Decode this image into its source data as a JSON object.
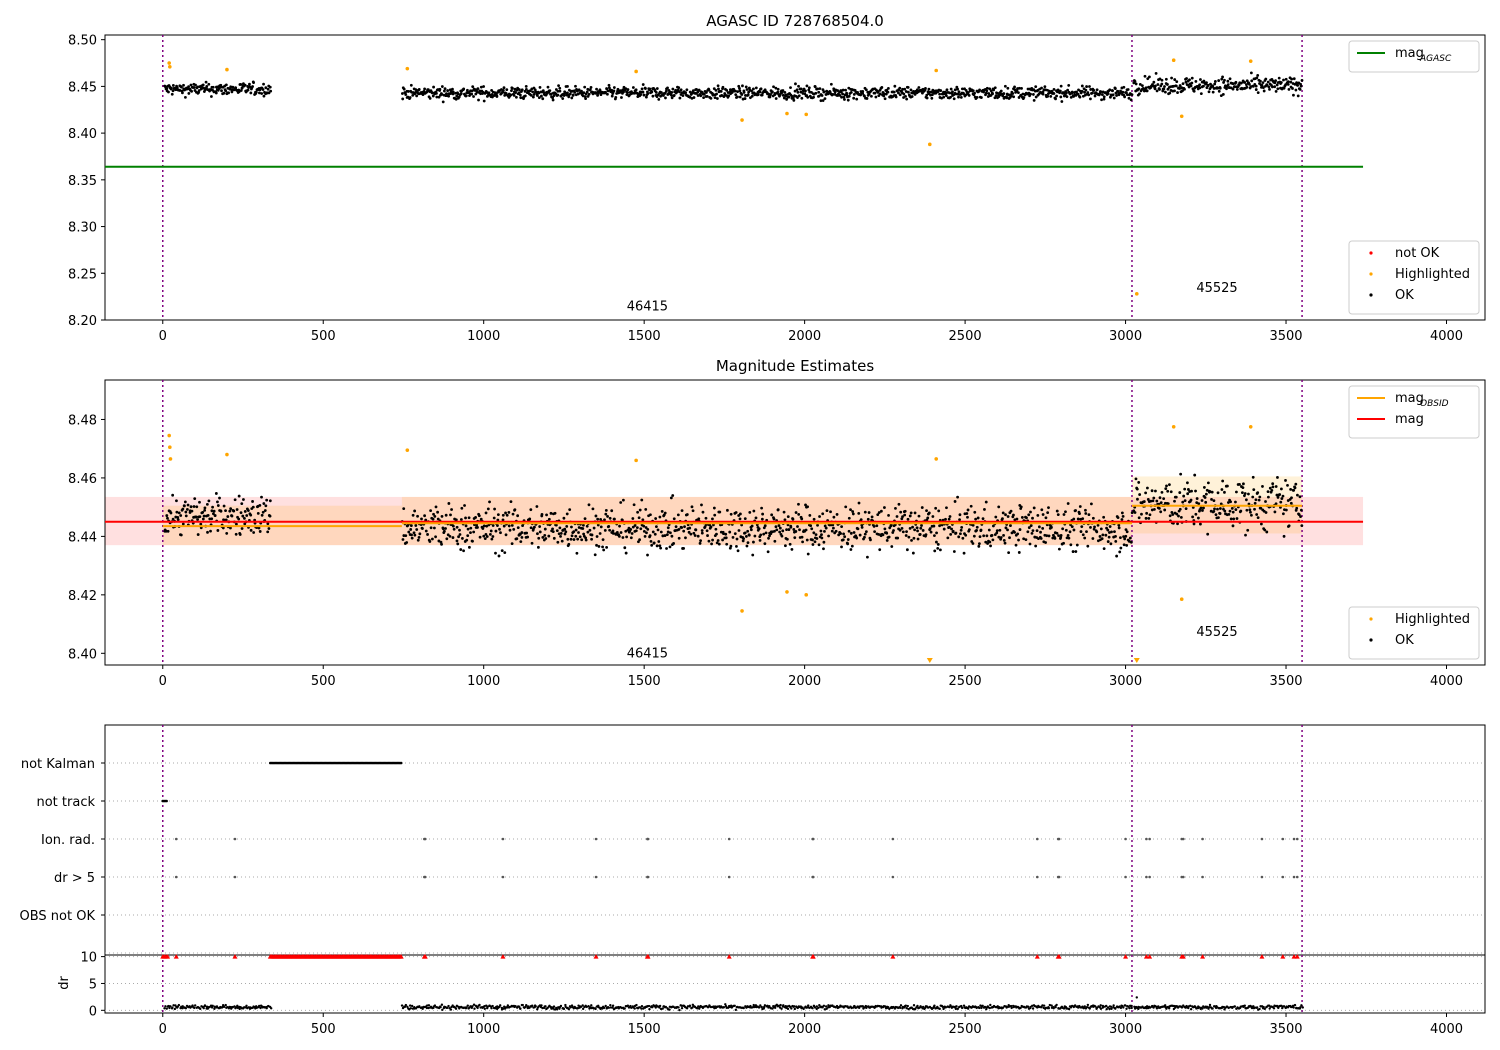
{
  "chart_data": [
    {
      "type": "scatter",
      "title": "AGASC ID 728768504.0",
      "xlim": [
        -180,
        4120
      ],
      "ylim": [
        8.2,
        8.505
      ],
      "x_ticks": [
        0,
        500,
        1000,
        1500,
        2000,
        2500,
        3000,
        3500,
        4000
      ],
      "x_tick_labels": [
        "0",
        "500",
        "1000",
        "1500",
        "2000",
        "2500",
        "3000",
        "3500",
        "4000"
      ],
      "y_ticks": [
        8.2,
        8.25,
        8.3,
        8.35,
        8.4,
        8.45,
        8.5
      ],
      "y_tick_labels": [
        "8.20",
        "8.25",
        "8.30",
        "8.35",
        "8.40",
        "8.45",
        "8.50"
      ],
      "observation_boundaries": [
        0,
        3020,
        3550
      ],
      "annotations": [
        {
          "text": "46415",
          "x": 1510,
          "y": 8.21
        },
        {
          "text": "45525",
          "x": 3285,
          "y": 8.23
        }
      ],
      "lines": [
        {
          "name": "mag_AGASC",
          "y": 8.364,
          "x": [
            -180,
            3740
          ],
          "color": "#008000"
        }
      ],
      "series": [
        {
          "name": "OK",
          "color": "#000000",
          "segments": [
            {
              "x": [
                5,
                335
              ],
              "center": 8.447,
              "spread": 0.006
            },
            {
              "x": [
                745,
                3020
              ],
              "center": 8.443,
              "spread": 0.006
            },
            {
              "x": [
                3025,
                3550
              ],
              "center": 8.451,
              "spread": 0.008
            }
          ]
        },
        {
          "name": "Highlighted",
          "color": "#ffa500",
          "points": [
            [
              20,
              8.475
            ],
            [
              22,
              8.471
            ],
            [
              200,
              8.468
            ],
            [
              762,
              8.469
            ],
            [
              1475,
              8.466
            ],
            [
              1805,
              8.414
            ],
            [
              1945,
              8.421
            ],
            [
              2005,
              8.42
            ],
            [
              2390,
              8.388
            ],
            [
              2410,
              8.467
            ],
            [
              3035,
              8.228
            ],
            [
              3150,
              8.478
            ],
            [
              3175,
              8.418
            ],
            [
              3390,
              8.477
            ]
          ]
        },
        {
          "name": "not OK",
          "color": "#ff0000",
          "points": []
        }
      ],
      "legends": [
        {
          "position": "upper-right",
          "entries": [
            {
              "label": "mag",
              "sub": "AGASC",
              "kind": "line",
              "color": "#008000"
            }
          ]
        },
        {
          "position": "lower-right",
          "entries": [
            {
              "label": "not OK",
              "kind": "dot",
              "color": "#ff0000"
            },
            {
              "label": "Highlighted",
              "kind": "dot",
              "color": "#ffa500"
            },
            {
              "label": "OK",
              "kind": "dot",
              "color": "#000000"
            }
          ]
        }
      ]
    },
    {
      "type": "scatter",
      "title": "Magnitude Estimates",
      "xlim": [
        -180,
        4120
      ],
      "ylim": [
        8.396,
        8.4935
      ],
      "x_ticks": [
        0,
        500,
        1000,
        1500,
        2000,
        2500,
        3000,
        3500,
        4000
      ],
      "x_tick_labels": [
        "0",
        "500",
        "1000",
        "1500",
        "2000",
        "2500",
        "3000",
        "3500",
        "4000"
      ],
      "y_ticks": [
        8.4,
        8.42,
        8.44,
        8.46,
        8.48
      ],
      "y_tick_labels": [
        "8.40",
        "8.42",
        "8.44",
        "8.46",
        "8.48"
      ],
      "observation_boundaries": [
        0,
        3020,
        3550
      ],
      "annotations": [
        {
          "text": "46415",
          "x": 1510,
          "y": 8.3985
        },
        {
          "text": "45525",
          "x": 3285,
          "y": 8.406
        }
      ],
      "bands": [
        {
          "name": "mag",
          "x": [
            -180,
            3740
          ],
          "y": [
            8.437,
            8.4535
          ],
          "color": "#ff0000",
          "opacity": 0.12
        },
        {
          "name": "mag_OBSID",
          "x": [
            0,
            745
          ],
          "y": [
            8.437,
            8.4505
          ],
          "color": "#ffa500",
          "opacity": 0.15
        },
        {
          "name": "mag_OBSID",
          "x": [
            745,
            3020
          ],
          "y": [
            8.437,
            8.4535
          ],
          "color": "#ffa500",
          "opacity": 0.15
        },
        {
          "name": "mag_OBSID",
          "x": [
            3020,
            3550
          ],
          "y": [
            8.441,
            8.4605
          ],
          "color": "#ffa500",
          "opacity": 0.15
        }
      ],
      "lines": [
        {
          "name": "mag",
          "y": 8.445,
          "x": [
            -180,
            3740
          ],
          "color": "#ff0000"
        },
        {
          "name": "mag_OBSID",
          "y": 8.4435,
          "x": [
            0,
            745
          ],
          "color": "#ffa500"
        },
        {
          "name": "mag_OBSID",
          "y": 8.4445,
          "x": [
            745,
            3020
          ],
          "color": "#ffa500"
        },
        {
          "name": "mag_OBSID",
          "y": 8.4505,
          "x": [
            3020,
            3550
          ],
          "color": "#ffa500"
        }
      ],
      "series": [
        {
          "name": "OK",
          "color": "#000000",
          "segments": [
            {
              "x": [
                5,
                335
              ],
              "center": 8.447,
              "spread": 0.006
            },
            {
              "x": [
                745,
                3020
              ],
              "center": 8.443,
              "spread": 0.007
            },
            {
              "x": [
                3025,
                3550
              ],
              "center": 8.451,
              "spread": 0.008
            }
          ]
        },
        {
          "name": "Highlighted",
          "color": "#ffa500",
          "points": [
            [
              20,
              8.4745
            ],
            [
              22,
              8.4705
            ],
            [
              24,
              8.4665
            ],
            [
              200,
              8.468
            ],
            [
              762,
              8.4695
            ],
            [
              1475,
              8.466
            ],
            [
              1805,
              8.4145
            ],
            [
              1945,
              8.421
            ],
            [
              2005,
              8.42
            ],
            [
              2410,
              8.4665
            ],
            [
              3150,
              8.4775
            ],
            [
              3175,
              8.4185
            ],
            [
              3390,
              8.4775
            ]
          ]
        }
      ],
      "out_of_range_markers": [
        {
          "x": 2390,
          "color": "#ffa500"
        },
        {
          "x": 3035,
          "color": "#ffa500"
        }
      ],
      "legends": [
        {
          "position": "upper-right",
          "entries": [
            {
              "label": "mag",
              "sub": "OBSID",
              "kind": "line",
              "color": "#ffa500"
            },
            {
              "label": "mag",
              "sub": "",
              "kind": "line",
              "color": "#ff0000"
            }
          ]
        },
        {
          "position": "lower-right",
          "entries": [
            {
              "label": "Highlighted",
              "kind": "dot",
              "color": "#ffa500"
            },
            {
              "label": "OK",
              "kind": "dot",
              "color": "#000000"
            }
          ]
        }
      ]
    },
    {
      "type": "scatter",
      "title": "",
      "xlim": [
        -180,
        4120
      ],
      "grid": "horizontal dotted",
      "observation_boundaries": [
        0,
        3020,
        3550
      ],
      "categories": [
        "not Kalman",
        "not track",
        "Ion. rad.",
        "dr > 5",
        "OBS not OK"
      ],
      "flag_ranges": [
        {
          "category": "not Kalman",
          "x": [
            335,
            745
          ]
        },
        {
          "category": "not track",
          "x": [
            0,
            15
          ]
        }
      ],
      "flag_points": {
        "Ion. rad.": [
          42,
          225,
          815,
          818,
          1060,
          1350,
          1510,
          1512,
          1765,
          2025,
          2027,
          2275,
          2725,
          2790,
          2793,
          3000,
          3065,
          3075,
          3175,
          3180,
          3240,
          3425,
          3490,
          3525,
          3535
        ],
        "dr > 5": [
          42,
          225,
          815,
          818,
          1060,
          1350,
          1510,
          1512,
          1765,
          2025,
          2027,
          2275,
          2725,
          2790,
          2793,
          3000,
          3065,
          3075,
          3175,
          3180,
          3240,
          3425,
          3490,
          3525,
          3535
        ],
        "OBS not OK": []
      }
    },
    {
      "type": "scatter",
      "title": "",
      "ylabel": "dr",
      "xlim": [
        -180,
        4120
      ],
      "ylim": [
        -0.5,
        10.3
      ],
      "x_ticks": [
        0,
        500,
        1000,
        1500,
        2000,
        2500,
        3000,
        3500,
        4000
      ],
      "x_tick_labels": [
        "0",
        "500",
        "1000",
        "1500",
        "2000",
        "2500",
        "3000",
        "3500",
        "4000"
      ],
      "y_ticks": [
        0,
        5,
        10
      ],
      "y_tick_labels": [
        "0",
        "5",
        "10"
      ],
      "observation_boundaries": [
        0,
        3020,
        3550
      ],
      "series": [
        {
          "name": "dr",
          "color": "#000000",
          "segments": [
            {
              "x": [
                5,
                335
              ],
              "center": 0.6,
              "spread": 0.35
            },
            {
              "x": [
                745,
                3020
              ],
              "center": 0.6,
              "spread": 0.35
            },
            {
              "x": [
                3025,
                3550
              ],
              "center": 0.6,
              "spread": 0.35
            }
          ]
        },
        {
          "name": "dr clipped",
          "color": "#ff0000",
          "points_x": [
            0,
            5,
            10,
            15,
            42,
            225,
            815,
            818,
            1060,
            1350,
            1510,
            1512,
            1765,
            2025,
            2027,
            2275,
            2725,
            2790,
            2793,
            3000,
            3065,
            3075,
            3175,
            3180,
            3240,
            3425,
            3490,
            3525,
            3535
          ],
          "range_x": [
            335,
            745
          ],
          "y": 10
        }
      ],
      "extra_points": [
        [
          3035,
          2.4
        ]
      ]
    }
  ]
}
